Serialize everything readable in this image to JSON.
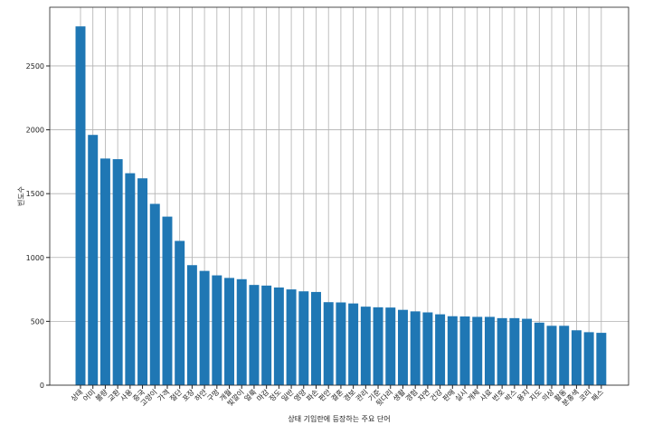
{
  "chart_data": {
    "type": "bar",
    "ylabel": "빈도수",
    "xlabel": "상태 기입란에 등장하는 주요 단어",
    "categories": [
      "상태",
      "어미",
      "불량",
      "교환",
      "사용",
      "중국",
      "고양이",
      "가격",
      "절단",
      "포장",
      "하얀",
      "구멍",
      "개월",
      "빛깔이",
      "얼룩",
      "마감",
      "정도",
      "일반",
      "영양",
      "파손",
      "편안",
      "결혼",
      "경보",
      "관리",
      "기준",
      "뒷다리",
      "생활",
      "경험",
      "자연",
      "건강",
      "판매",
      "실시",
      "개체",
      "사료",
      "번호",
      "박스",
      "용지",
      "지도",
      "의상",
      "활동",
      "분홍색",
      "코리",
      "패스"
    ],
    "values": [
      2810,
      1960,
      1775,
      1770,
      1660,
      1620,
      1420,
      1320,
      1130,
      940,
      895,
      860,
      840,
      830,
      785,
      780,
      765,
      750,
      735,
      730,
      650,
      648,
      640,
      615,
      610,
      608,
      590,
      578,
      570,
      555,
      540,
      538,
      535,
      535,
      525,
      525,
      520,
      490,
      465,
      465,
      430,
      415,
      410
    ],
    "color": "#1f77b4",
    "ylim": [
      0,
      2960
    ],
    "yticks": [
      0,
      500,
      1000,
      1500,
      2000,
      2500
    ],
    "grid": true
  }
}
